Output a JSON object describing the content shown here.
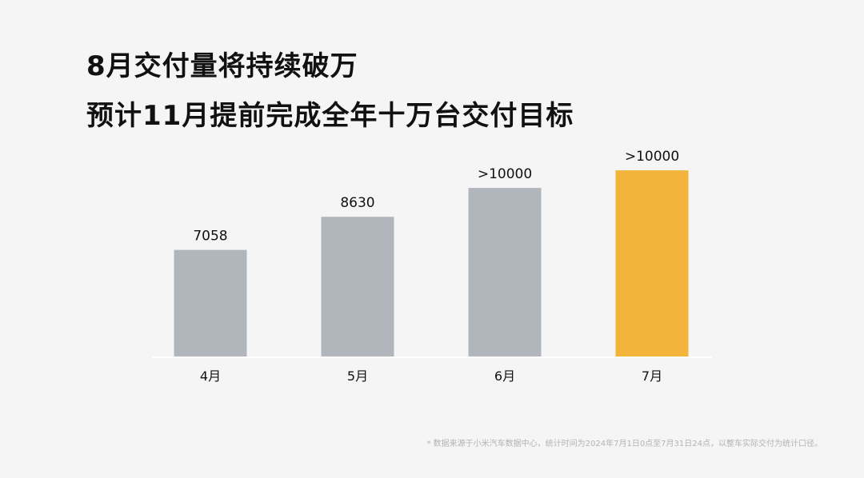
{
  "title": {
    "line1": "8月交付量将持续破万",
    "line2": "预计11月提前完成全年十万台交付目标"
  },
  "footnote": "* 数据来源于小米汽车数据中心，统计时间为2024年7月1日0点至7月31日24点，以整车实际交付为统计口径。",
  "colors": {
    "background": "#f5f5f5",
    "bar": "#b1b5bc",
    "highlight": "#f3b43c",
    "text": "#111111",
    "axis": "#ffffff"
  },
  "chart_data": {
    "type": "bar",
    "categories": [
      "4月",
      "5月",
      "6月",
      "7月"
    ],
    "values": [
      7058,
      8630,
      10000,
      10000
    ],
    "data_labels": [
      "7058",
      "8630",
      ">10000",
      ">10000"
    ],
    "highlight_index": 3,
    "grid": false,
    "legend": "none"
  }
}
